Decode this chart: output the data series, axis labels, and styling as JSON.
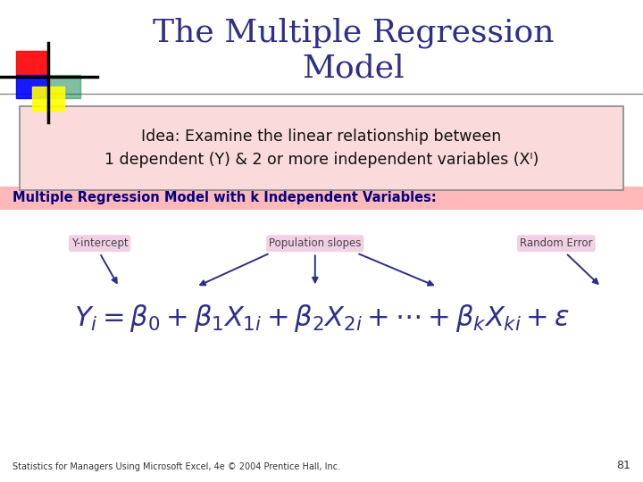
{
  "title": "The Multiple Regression\nModel",
  "title_color": "#2E2E8B",
  "title_fontsize": 26,
  "idea_text": "Idea: Examine the linear relationship between\n1 dependent (Y) & 2 or more independent variables (Xᴵ)",
  "idea_box_facecolor": "#FADADB",
  "idea_box_edgecolor": "#888888",
  "section_label": "Multiple Regression Model with k Independent Variables:",
  "section_label_color": "#000080",
  "section_bg": "#FFD0D0",
  "label_y_intercept": "Y-intercept",
  "label_pop_slopes": "Population slopes",
  "label_random_error": "Random Error",
  "label_bg": "#F0C8E0",
  "label_color": "#444444",
  "arrow_color": "#2E2E8B",
  "equation": "Y_i = \\beta_0 + \\beta_1 X_{1i} + \\beta_2 X_{2i} + \\cdots + \\beta_k X_{ki} + \\varepsilon",
  "eq_color": "#2E2E8B",
  "footer": "Statistics for Managers Using Microsoft Excel, 4e © 2004 Prentice Hall, Inc.",
  "footer_page": "81",
  "bg_color": "#FFFFFF",
  "logo_red": "#FF0000",
  "logo_blue": "#0000FF",
  "logo_green": "#008040",
  "logo_yellow": "#FFFF00"
}
